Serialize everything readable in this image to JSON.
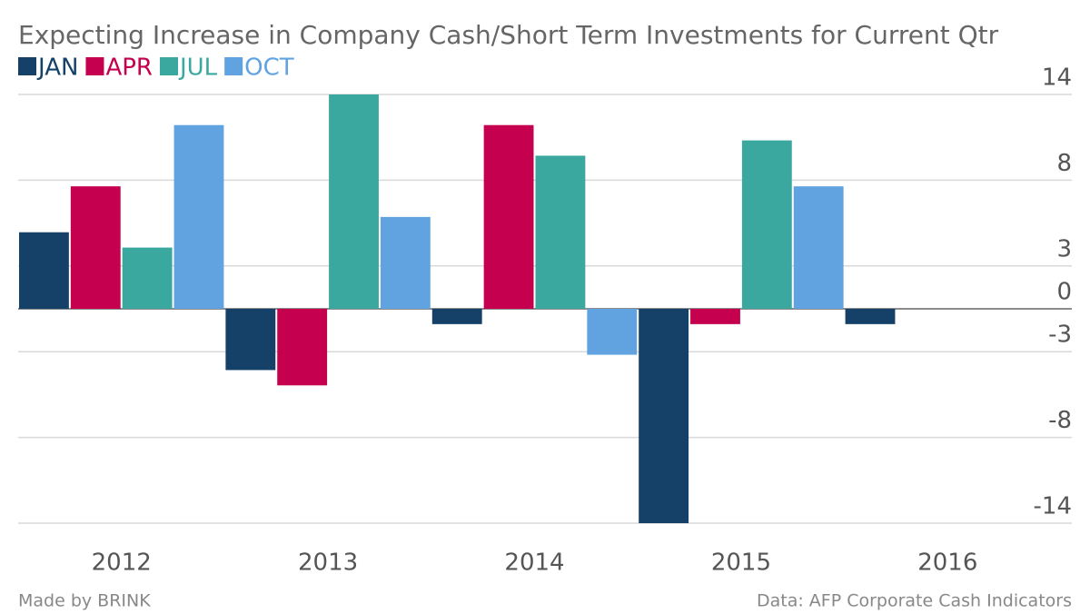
{
  "chart_data": {
    "type": "bar",
    "title": "Expecting Increase in Company Cash/Short Term Investments for Current Qtr",
    "categories": [
      "2012",
      "2013",
      "2014",
      "2015",
      "2016"
    ],
    "series": [
      {
        "name": "JAN",
        "color": "#154169",
        "values": [
          5,
          -4,
          -1,
          -14,
          -1
        ]
      },
      {
        "name": "APR",
        "color": "#c4004f",
        "values": [
          8,
          -5,
          12,
          -1,
          null
        ]
      },
      {
        "name": "JUL",
        "color": "#3aa89f",
        "values": [
          4,
          14,
          10,
          11,
          null
        ]
      },
      {
        "name": "OCT",
        "color": "#60a3e0",
        "values": [
          12,
          6,
          -3,
          8,
          null
        ]
      }
    ],
    "ylim": [
      -14,
      14
    ],
    "yticks": [
      14,
      {
        "value": 8.4,
        "label": "8"
      },
      {
        "value": 2.8,
        "label": "3"
      },
      0,
      {
        "value": -2.8,
        "label": "-3"
      },
      {
        "value": -8.4,
        "label": "-8"
      },
      -14
    ],
    "grid": true,
    "legend": "top-left",
    "credit": "Made by BRINK",
    "source": "Data: AFP Corporate Cash Indicators"
  }
}
